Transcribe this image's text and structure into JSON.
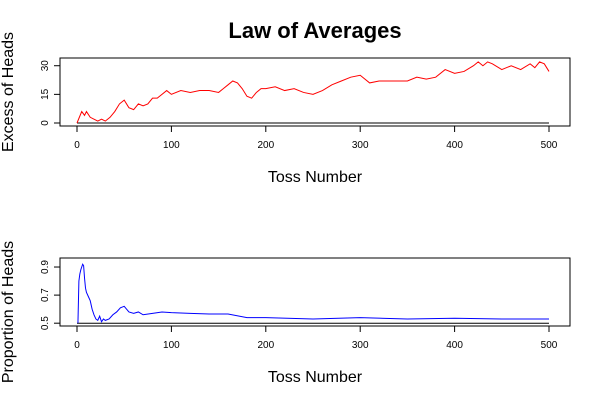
{
  "title": "Law of Averages",
  "chart_data": [
    {
      "type": "line",
      "ylabel": "Excess of Heads",
      "xlabel": "Toss Number",
      "xlim": [
        0,
        500
      ],
      "ylim": [
        0,
        33
      ],
      "x_ticks": [
        0,
        100,
        200,
        300,
        400,
        500
      ],
      "y_ticks": [
        0,
        15,
        30
      ],
      "reference_line": 0,
      "grid": false,
      "color": "#ff0000",
      "series": [
        {
          "x": [
            0,
            5,
            8,
            10,
            14,
            18,
            22,
            26,
            30,
            35,
            40,
            45,
            50,
            55,
            60,
            65,
            70,
            75,
            80,
            85,
            90,
            95,
            100,
            110,
            120,
            130,
            140,
            150,
            155,
            160,
            165,
            170,
            175,
            180,
            185,
            190,
            195,
            200,
            210,
            220,
            230,
            240,
            250,
            260,
            270,
            280,
            290,
            300,
            310,
            320,
            330,
            340,
            350,
            360,
            370,
            380,
            390,
            400,
            410,
            420,
            425,
            430,
            435,
            440,
            450,
            460,
            470,
            480,
            485,
            490,
            495,
            500
          ],
          "y": [
            0,
            6,
            4,
            6,
            3,
            2,
            1,
            2,
            1,
            3,
            6,
            10,
            12,
            8,
            7,
            10,
            9,
            10,
            13,
            13,
            15,
            17,
            15,
            17,
            16,
            17,
            17,
            16,
            18,
            20,
            22,
            21,
            18,
            14,
            13,
            16,
            18,
            18,
            19,
            17,
            18,
            16,
            15,
            17,
            20,
            22,
            24,
            25,
            21,
            22,
            22,
            22,
            22,
            24,
            23,
            24,
            28,
            26,
            27,
            30,
            32,
            30,
            32,
            31,
            28,
            30,
            28,
            31,
            29,
            32,
            31,
            27
          ]
        }
      ]
    },
    {
      "type": "line",
      "ylabel": "Proportion of Heads",
      "xlabel": "Toss Number",
      "xlim": [
        0,
        500
      ],
      "ylim": [
        0.48,
        0.95
      ],
      "x_ticks": [
        0,
        100,
        200,
        300,
        400,
        500
      ],
      "y_ticks": [
        0.5,
        0.7,
        0.9
      ],
      "reference_line": 0.5,
      "grid": false,
      "color": "#0000ff",
      "series": [
        {
          "x": [
            1,
            2,
            3,
            4,
            5,
            6,
            7,
            8,
            9,
            10,
            12,
            14,
            16,
            18,
            20,
            22,
            24,
            26,
            28,
            30,
            34,
            38,
            42,
            46,
            50,
            55,
            60,
            65,
            70,
            80,
            90,
            100,
            120,
            140,
            160,
            180,
            200,
            250,
            300,
            350,
            400,
            450,
            500
          ],
          "y": [
            0.5,
            0.8,
            0.85,
            0.88,
            0.9,
            0.92,
            0.91,
            0.82,
            0.75,
            0.72,
            0.69,
            0.66,
            0.6,
            0.56,
            0.53,
            0.52,
            0.55,
            0.51,
            0.53,
            0.52,
            0.53,
            0.56,
            0.58,
            0.61,
            0.62,
            0.58,
            0.57,
            0.58,
            0.56,
            0.57,
            0.58,
            0.575,
            0.57,
            0.565,
            0.565,
            0.54,
            0.54,
            0.53,
            0.54,
            0.53,
            0.535,
            0.53,
            0.53
          ]
        }
      ]
    }
  ]
}
